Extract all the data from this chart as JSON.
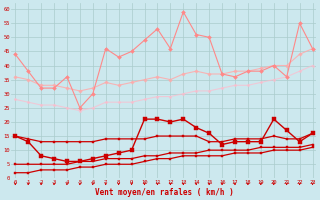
{
  "x": [
    0,
    1,
    2,
    3,
    4,
    5,
    6,
    7,
    8,
    9,
    10,
    11,
    12,
    13,
    14,
    15,
    16,
    17,
    18,
    19,
    20,
    21,
    22,
    23
  ],
  "series": {
    "pink_wavy": [
      44,
      38,
      32,
      32,
      36,
      25,
      30,
      46,
      43,
      45,
      49,
      53,
      46,
      59,
      51,
      50,
      37,
      36,
      38,
      38,
      40,
      36,
      55,
      46
    ],
    "pink_trend1": [
      36,
      35,
      33,
      33,
      32,
      31,
      32,
      34,
      33,
      34,
      35,
      36,
      35,
      37,
      38,
      37,
      37,
      38,
      38,
      39,
      40,
      40,
      44,
      46
    ],
    "pink_trend2": [
      28,
      27,
      26,
      26,
      25,
      24,
      25,
      27,
      27,
      27,
      28,
      29,
      29,
      30,
      31,
      31,
      32,
      33,
      33,
      34,
      35,
      36,
      38,
      40
    ],
    "red_wavy": [
      15,
      13,
      8,
      7,
      6,
      6,
      7,
      8,
      9,
      10,
      21,
      21,
      20,
      21,
      18,
      16,
      12,
      13,
      13,
      13,
      21,
      17,
      13,
      16
    ],
    "red_trend1": [
      15,
      14,
      13,
      13,
      13,
      13,
      13,
      14,
      14,
      14,
      14,
      15,
      15,
      15,
      15,
      13,
      13,
      14,
      14,
      14,
      15,
      14,
      14,
      16
    ],
    "red_trend2": [
      5,
      5,
      5,
      5,
      5,
      6,
      6,
      7,
      7,
      7,
      8,
      8,
      9,
      9,
      9,
      10,
      10,
      10,
      10,
      11,
      11,
      11,
      11,
      12
    ],
    "red_trend3": [
      2,
      2,
      3,
      3,
      3,
      4,
      4,
      5,
      5,
      5,
      6,
      7,
      7,
      8,
      8,
      8,
      8,
      9,
      9,
      9,
      10,
      10,
      10,
      11
    ]
  },
  "colors": {
    "pink_wavy": "#ff8888",
    "pink_trend1": "#ffaaaa",
    "pink_trend2": "#ffbbcc",
    "red_wavy": "#cc0000",
    "red_trend1": "#cc0000",
    "red_trend2": "#cc0000",
    "red_trend3": "#cc0000"
  },
  "alphas": {
    "pink_wavy": 1.0,
    "pink_trend1": 0.85,
    "pink_trend2": 0.7,
    "red_wavy": 1.0,
    "red_trend1": 1.0,
    "red_trend2": 1.0,
    "red_trend3": 1.0
  },
  "background_color": "#cce8ee",
  "grid_color": "#aacccc",
  "xlabel": "Vent moyen/en rafales ( km/h )",
  "xlim": [
    0,
    23
  ],
  "ylim": [
    0,
    62
  ],
  "yticks": [
    0,
    5,
    10,
    15,
    20,
    25,
    30,
    35,
    40,
    45,
    50,
    55,
    60
  ],
  "xticks": [
    0,
    1,
    2,
    3,
    4,
    5,
    6,
    7,
    8,
    9,
    10,
    11,
    12,
    13,
    14,
    15,
    16,
    17,
    18,
    19,
    20,
    21,
    22,
    23
  ]
}
